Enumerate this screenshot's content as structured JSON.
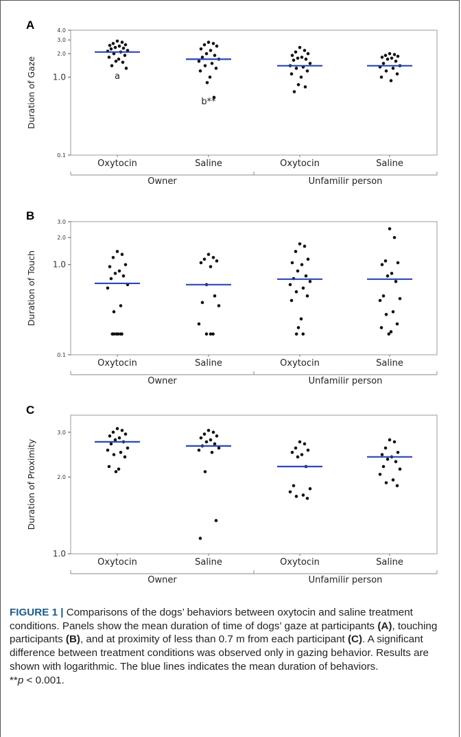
{
  "chart_data": [
    {
      "type": "scatter",
      "panel": "A",
      "ylabel": "Duration of Gaze",
      "yscale": "log",
      "ylim": [
        0.1,
        4.0
      ],
      "yticks": [
        {
          "v": 4.0,
          "label": "4.0",
          "major": false
        },
        {
          "v": 3.0,
          "label": "3.0",
          "major": false
        },
        {
          "v": 2.0,
          "label": "2.0",
          "major": false
        },
        {
          "v": 1.0,
          "label": "1.0",
          "major": true
        },
        {
          "v": 0.1,
          "label": "0.1",
          "major": false
        }
      ],
      "categories": [
        "Oxytocin",
        "Saline",
        "Oxytocin",
        "Saline"
      ],
      "groups": [
        "Owner",
        "Unfamilir person"
      ],
      "means": [
        2.1,
        1.7,
        1.4,
        1.4
      ],
      "points": [
        [
          2.9,
          2.8,
          2.7,
          2.6,
          2.55,
          2.5,
          2.4,
          2.35,
          2.3,
          2.2,
          2.15,
          2.1,
          2.0,
          1.9,
          1.8,
          1.7,
          1.6,
          1.55,
          1.4,
          1.3
        ],
        [
          2.8,
          2.7,
          2.6,
          2.5,
          2.3,
          2.2,
          2.0,
          1.9,
          1.8,
          1.7,
          1.6,
          1.5,
          1.4,
          1.3,
          1.2,
          1.0,
          0.85,
          0.55
        ],
        [
          2.4,
          2.2,
          2.1,
          2.0,
          1.9,
          1.8,
          1.75,
          1.7,
          1.65,
          1.5,
          1.4,
          1.35,
          1.3,
          1.2,
          1.1,
          1.0,
          0.8,
          0.75,
          0.65
        ],
        [
          2.0,
          1.95,
          1.9,
          1.85,
          1.8,
          1.75,
          1.7,
          1.6,
          1.5,
          1.4,
          1.35,
          1.3,
          1.2,
          1.1,
          1.0,
          0.9
        ]
      ],
      "annotations": [
        {
          "text": "a",
          "cat": 0,
          "v": 0.95
        },
        {
          "text": "b**",
          "cat": 1,
          "v": 0.45
        }
      ]
    },
    {
      "type": "scatter",
      "panel": "B",
      "ylabel": "Duration of Touch",
      "yscale": "log",
      "ylim": [
        0.1,
        3.0
      ],
      "yticks": [
        {
          "v": 3.0,
          "label": "3.0",
          "major": false
        },
        {
          "v": 2.0,
          "label": "2.0",
          "major": false
        },
        {
          "v": 1.0,
          "label": "1.0",
          "major": true
        },
        {
          "v": 0.1,
          "label": "0.1",
          "major": false
        }
      ],
      "categories": [
        "Oxytocin",
        "Saline",
        "Oxytocin",
        "Saline"
      ],
      "groups": [
        "Owner",
        "Unfamilir person"
      ],
      "means": [
        0.62,
        0.6,
        0.69,
        0.69
      ],
      "points": [
        [
          1.4,
          1.3,
          1.2,
          1.0,
          0.95,
          0.85,
          0.8,
          0.75,
          0.7,
          0.6,
          0.55,
          0.35,
          0.3,
          0.17,
          0.17,
          0.17,
          0.17,
          0.17,
          0.17
        ],
        [
          1.3,
          1.2,
          1.15,
          1.1,
          1.05,
          0.95,
          0.6,
          0.45,
          0.38,
          0.35,
          0.22,
          0.17,
          0.17,
          0.17
        ],
        [
          1.7,
          1.6,
          1.4,
          1.15,
          1.05,
          1.0,
          0.85,
          0.75,
          0.7,
          0.65,
          0.6,
          0.55,
          0.5,
          0.45,
          0.4,
          0.25,
          0.2,
          0.17,
          0.17
        ],
        [
          2.5,
          2.0,
          1.1,
          1.05,
          1.0,
          0.8,
          0.75,
          0.65,
          0.45,
          0.42,
          0.4,
          0.3,
          0.28,
          0.22,
          0.2,
          0.18,
          0.17
        ]
      ],
      "annotations": []
    },
    {
      "type": "scatter",
      "panel": "C",
      "ylabel": "Duration of Proximity",
      "yscale": "log",
      "ylim": [
        1.0,
        3.5
      ],
      "yticks": [
        {
          "v": 3.0,
          "label": "3.0",
          "major": false
        },
        {
          "v": 2.0,
          "label": "2.0",
          "major": false
        },
        {
          "v": 1.0,
          "label": "1.0",
          "major": true
        }
      ],
      "categories": [
        "Oxytocin",
        "Saline",
        "Oxytocin",
        "Saline"
      ],
      "groups": [
        "Owner",
        "Unfamilir person"
      ],
      "means": [
        2.75,
        2.65,
        2.2,
        2.4
      ],
      "points": [
        [
          3.1,
          3.05,
          3.0,
          2.95,
          2.9,
          2.85,
          2.8,
          2.75,
          2.7,
          2.6,
          2.55,
          2.5,
          2.45,
          2.4,
          2.2,
          2.15,
          2.1
        ],
        [
          3.05,
          3.0,
          2.95,
          2.9,
          2.85,
          2.8,
          2.75,
          2.7,
          2.65,
          2.6,
          2.55,
          2.5,
          2.1,
          1.35,
          1.15
        ],
        [
          2.75,
          2.7,
          2.6,
          2.55,
          2.5,
          2.45,
          2.4,
          2.2,
          1.85,
          1.8,
          1.75,
          1.7,
          1.68,
          1.65
        ],
        [
          2.8,
          2.75,
          2.6,
          2.5,
          2.45,
          2.4,
          2.35,
          2.3,
          2.2,
          2.15,
          2.05,
          1.95,
          1.9,
          1.85
        ]
      ],
      "annotations": []
    }
  ],
  "caption": {
    "lead": "FIGURE 1 |",
    "t1": " Comparisons of the dogs’ behaviors between oxytocin and saline treatment conditions. Panels show the mean duration of time of dogs’ gaze at participants ",
    "refA": "(A)",
    "t2": ", touching participants ",
    "refB": "(B)",
    "t3": ", and at proximity of less than 0.7 m from each participant ",
    "refC": "(C)",
    "t4": ". A significant difference between treatment conditions was observed only in gazing behavior. Results are shown with logarithmic. The blue lines indicates the mean duration of behaviors.",
    "sig_prefix": "**",
    "sig_p": "p",
    "sig_rest": " < 0.001."
  },
  "colors": {
    "mean_line": "#2a46b8",
    "point": "#111111",
    "plot_border": "#9a9a9a"
  }
}
